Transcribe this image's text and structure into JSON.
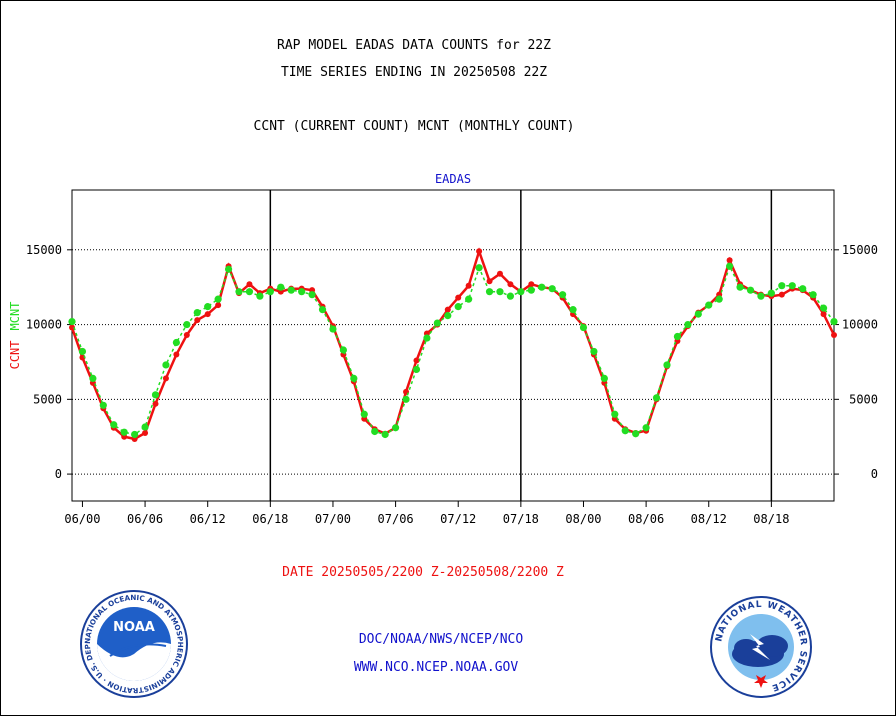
{
  "title_line1": "RAP MODEL EADAS DATA COUNTS for 22Z",
  "title_line2": "TIME SERIES ENDING IN 20250508 22Z",
  "subtitle": "CCNT (CURRENT COUNT) MCNT (MONTHLY COUNT)",
  "date_range": "DATE 20250505/2200 Z-20250508/2200 Z",
  "footer": {
    "line1": "DOC/NOAA/NWS/NCEP/NCO",
    "line2": "WWW.NCO.NCEP.NOAA.GOV"
  },
  "logos": {
    "noaa_text": "NOAA",
    "noaa_ring": "NATIONAL OCEANIC AND ATMOSPHERIC ADMINISTRATION · U.S. DEPARTMENT OF COMMERCE ·",
    "nws_ring": "NATIONAL WEATHER SERVICE"
  },
  "colors": {
    "ccnt": "#ee1111",
    "mcnt": "#22dd22",
    "title_blue": "#1111cc",
    "date_red": "#ee1111"
  },
  "chart_data": {
    "type": "line",
    "title": "EADAS",
    "ylabel": [
      "CCNT",
      "MCNT"
    ],
    "ylim": [
      -1800,
      19000
    ],
    "yticks": [
      0,
      5000,
      10000,
      15000
    ],
    "grid": "dotted horizontal",
    "xticks": [
      "06/00",
      "06/06",
      "06/12",
      "06/18",
      "07/00",
      "07/06",
      "07/12",
      "07/18",
      "08/00",
      "08/06",
      "08/12",
      "08/18"
    ],
    "series": [
      {
        "name": "CCNT",
        "values": [
          9800,
          7800,
          6100,
          4400,
          3100,
          2500,
          2350,
          2750,
          4700,
          6400,
          8000,
          9300,
          10300,
          10700,
          11300,
          13900,
          12100,
          12700,
          12100,
          12400,
          12200,
          12400,
          12400,
          12300,
          11200,
          9900,
          8000,
          6200,
          3700,
          3000,
          2700,
          3100,
          5500,
          7600,
          9400,
          10000,
          11000,
          11800,
          12600,
          14900,
          12900,
          13400,
          12700,
          12200,
          12700,
          12500,
          12400,
          11800,
          10700,
          9900,
          8000,
          6100,
          3700,
          3000,
          2750,
          2900,
          5000,
          7200,
          8900,
          9900,
          10800,
          11300,
          12000,
          14300,
          12700,
          12300,
          12000,
          11900,
          12000,
          12400,
          12300,
          11800,
          10700,
          9300
        ]
      },
      {
        "name": "MCNT",
        "values": [
          10200,
          8200,
          6400,
          4600,
          3300,
          2800,
          2650,
          3150,
          5300,
          7300,
          8800,
          10000,
          10800,
          11200,
          11700,
          13700,
          12200,
          12200,
          11900,
          12200,
          12500,
          12300,
          12200,
          12000,
          11000,
          9700,
          8300,
          6400,
          4000,
          2850,
          2650,
          3100,
          5000,
          7000,
          9100,
          10100,
          10600,
          11200,
          11700,
          13800,
          12200,
          12200,
          11900,
          12200,
          12300,
          12500,
          12400,
          12000,
          11000,
          9800,
          8200,
          6400,
          4000,
          2900,
          2700,
          3100,
          5100,
          7300,
          9200,
          10000,
          10700,
          11300,
          11700,
          13900,
          12500,
          12300,
          11900,
          12100,
          12600,
          12600,
          12400,
          12000,
          11100,
          10200
        ]
      }
    ]
  }
}
